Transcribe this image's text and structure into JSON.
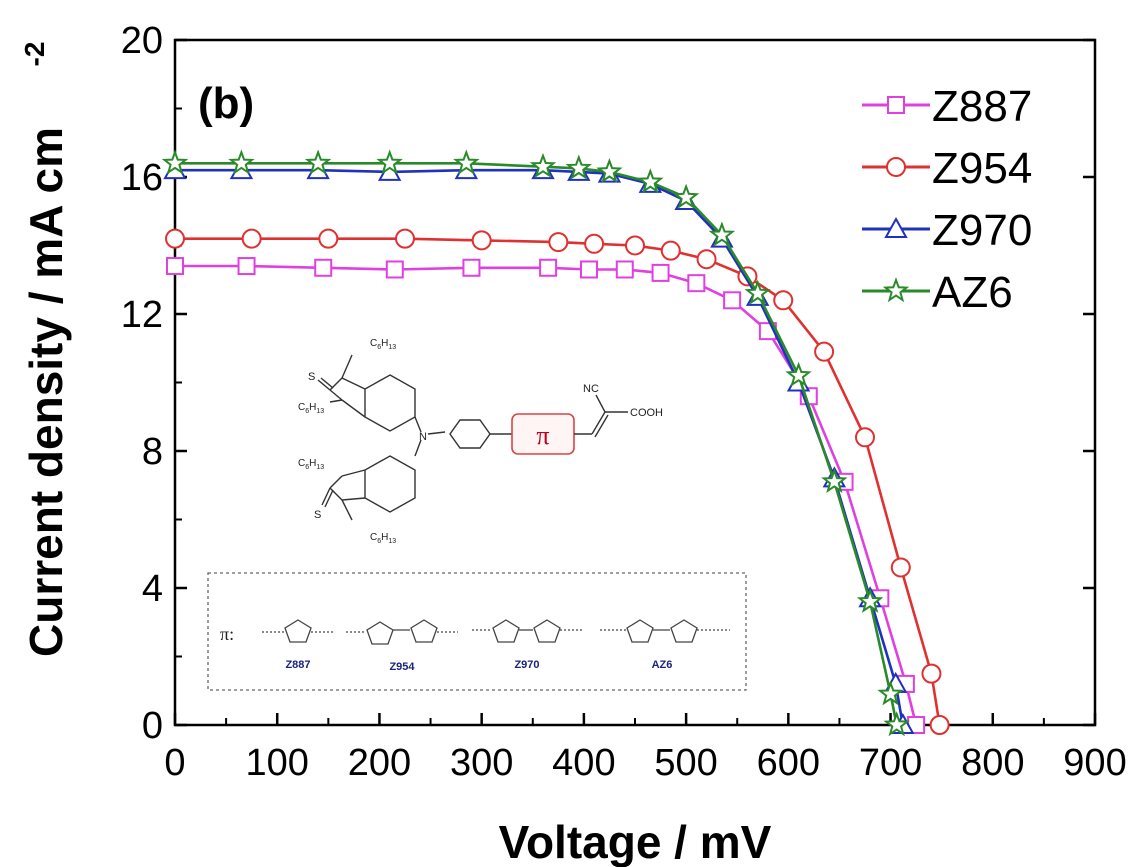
{
  "chart_data": {
    "type": "line",
    "panel_label": "(b)",
    "xlabel": "Voltage / mV",
    "ylabel": "Current density / mA cm",
    "ylabel_sup": "-2",
    "xlim": [
      0,
      900
    ],
    "ylim": [
      0,
      20
    ],
    "xticks": [
      "0",
      "100",
      "200",
      "300",
      "400",
      "500",
      "600",
      "700",
      "800",
      "900"
    ],
    "yticks": [
      "0",
      "4",
      "8",
      "12",
      "16",
      "20"
    ],
    "grid": false,
    "legend_position": "top-right",
    "series": [
      {
        "name": "Z887",
        "color": "#e040e0",
        "marker": "square",
        "x": [
          0,
          70,
          145,
          215,
          290,
          365,
          405,
          440,
          475,
          510,
          545,
          580,
          620,
          655,
          690,
          715,
          725
        ],
        "y": [
          13.4,
          13.4,
          13.35,
          13.3,
          13.35,
          13.35,
          13.3,
          13.3,
          13.2,
          12.9,
          12.4,
          11.5,
          9.6,
          7.1,
          3.7,
          1.2,
          0
        ]
      },
      {
        "name": "Z954",
        "color": "#e03030",
        "marker": "circle",
        "x": [
          0,
          75,
          150,
          225,
          300,
          375,
          410,
          450,
          485,
          520,
          560,
          595,
          635,
          675,
          710,
          740,
          748
        ],
        "y": [
          14.2,
          14.2,
          14.2,
          14.2,
          14.15,
          14.1,
          14.05,
          14.0,
          13.85,
          13.6,
          13.1,
          12.4,
          10.9,
          8.4,
          4.6,
          1.5,
          0
        ]
      },
      {
        "name": "Z970",
        "color": "#2030c0",
        "marker": "triangle",
        "x": [
          0,
          65,
          140,
          210,
          285,
          360,
          395,
          425,
          465,
          500,
          535,
          570,
          610,
          645,
          680,
          705,
          712
        ],
        "y": [
          16.2,
          16.2,
          16.2,
          16.15,
          16.2,
          16.2,
          16.15,
          16.1,
          15.8,
          15.3,
          14.2,
          12.5,
          10.0,
          7.2,
          3.7,
          1.2,
          0
        ]
      },
      {
        "name": "AZ6",
        "color": "#2a8a2a",
        "marker": "star",
        "x": [
          0,
          65,
          140,
          210,
          285,
          360,
          395,
          425,
          465,
          500,
          535,
          570,
          610,
          645,
          680,
          700,
          706
        ],
        "y": [
          16.4,
          16.4,
          16.4,
          16.4,
          16.4,
          16.3,
          16.25,
          16.15,
          15.85,
          15.4,
          14.3,
          12.6,
          10.2,
          7.1,
          3.6,
          0.9,
          0
        ]
      }
    ]
  },
  "inset": {
    "pi_symbol": "π",
    "pi_prefix": "π:",
    "cooh": "COOH",
    "nc": "NC",
    "n_atom": "N",
    "s_atom": "S",
    "c6h13": "C",
    "c6h13_sub1": "6",
    "c6h13_rest": "H",
    "c6h13_sub2": "13",
    "bridge_names": [
      "Z887",
      "Z954",
      "Z970",
      "AZ6"
    ]
  }
}
